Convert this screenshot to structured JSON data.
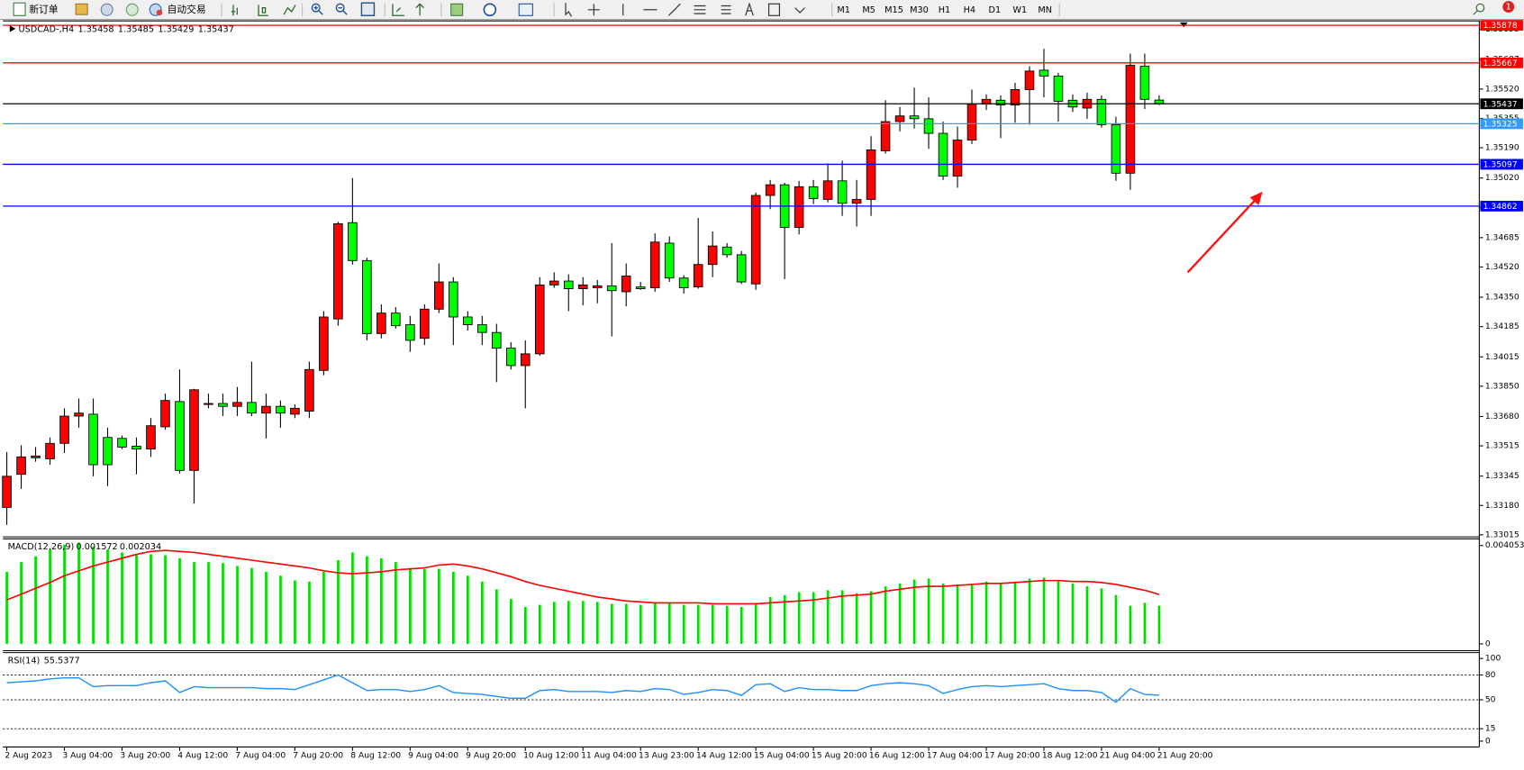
{
  "toolbar": {
    "new_order": "新订单",
    "auto_trading": "自动交易",
    "timeframes": [
      "M1",
      "M5",
      "M15",
      "M30",
      "H1",
      "H4",
      "D1",
      "W1",
      "MN"
    ],
    "notification_count": 1
  },
  "chart_data": [
    {
      "type": "candlestick",
      "symbol": "USDCAD-,H4",
      "up_color": "#ff0000",
      "down_color": "#00ff00",
      "ylim": [
        1.33009,
        1.359
      ],
      "yticks": [
        1.35855,
        1.35687,
        {
          "value": 1.3552,
          "label": "1.35520"
        },
        1.35355,
        {
          "value": 1.3519,
          "label": "1.35190"
        },
        {
          "value": 1.3502,
          "label": "1.35020"
        },
        1.34855,
        1.34685,
        {
          "value": 1.3452,
          "label": "1.34520"
        },
        {
          "value": 1.3435,
          "label": "1.34350"
        },
        1.34185,
        1.34015,
        {
          "value": 1.3385,
          "label": "1.33850"
        },
        {
          "value": 1.3368,
          "label": "1.33680"
        },
        1.33515,
        1.33345,
        {
          "value": 1.3318,
          "label": "1.33180"
        },
        1.33015
      ],
      "levels": [
        {
          "value": 1.35878,
          "color": "#ff0000"
        },
        {
          "value": 1.35667,
          "color": "#ff0000"
        },
        {
          "value": 1.35325,
          "color": "#3399ff"
        },
        {
          "value": 1.35097,
          "color": "#0000ff"
        },
        {
          "value": 1.34862,
          "color": "#0000ff"
        }
      ],
      "bid_color": "#000000",
      "x": [
        "2 Aug 2023",
        null,
        null,
        null,
        "3 Aug 04:00",
        null,
        null,
        null,
        "3 Aug 20:00",
        null,
        null,
        null,
        "4 Aug 12:00",
        null,
        null,
        null,
        "7 Aug 04:00",
        null,
        null,
        null,
        "7 Aug 20:00",
        null,
        null,
        null,
        "8 Aug 12:00",
        null,
        null,
        null,
        "9 Aug 04:00",
        null,
        null,
        null,
        "9 Aug 20:00",
        null,
        null,
        null,
        "10 Aug 12:00",
        null,
        null,
        null,
        "11 Aug 04:00",
        null,
        null,
        null,
        "13 Aug 23:00",
        null,
        null,
        null,
        "14 Aug 12:00",
        null,
        null,
        null,
        "15 Aug 04:00",
        null,
        null,
        null,
        "15 Aug 20:00",
        null,
        null,
        null,
        "16 Aug 12:00",
        null,
        null,
        null,
        "17 Aug 04:00",
        null,
        null,
        null,
        "17 Aug 20:00",
        null,
        null,
        null,
        "18 Aug 12:00",
        null,
        null,
        null,
        "21 Aug 04:00",
        null,
        null,
        null,
        "21 Aug 20:00"
      ],
      "open": [
        1.33169,
        1.33355,
        1.33448,
        1.33442,
        1.33529,
        1.33682,
        1.33693,
        1.33562,
        1.33557,
        1.33513,
        1.33497,
        1.33622,
        1.33764,
        1.33377,
        1.33748,
        1.33753,
        1.33737,
        1.33759,
        1.33699,
        1.33737,
        1.33693,
        1.3371,
        1.33939,
        1.34228,
        1.34769,
        1.34556,
        1.34146,
        1.34261,
        1.34196,
        1.34119,
        1.34283,
        1.34436,
        1.34239,
        1.34196,
        1.34152,
        1.34064,
        1.33966,
        1.34032,
        1.34419,
        1.34441,
        1.34398,
        1.34403,
        1.34414,
        1.34381,
        1.34408,
        1.34403,
        1.34654,
        1.34458,
        1.34408,
        1.34534,
        1.34632,
        1.34589,
        1.34425,
        1.34922,
        1.34982,
        1.34742,
        1.34971,
        1.349,
        1.35004,
        1.34878,
        1.349,
        1.35173,
        1.35337,
        1.35369,
        1.35353,
        1.35271,
        1.35031,
        1.35233,
        1.35435,
        1.35457,
        1.3543,
        1.35517,
        1.35626,
        1.35593,
        1.35457,
        1.35413,
        1.35462,
        1.3532,
        1.35047,
        1.35648,
        1.35458
      ],
      "high": [
        1.3348,
        1.33518,
        1.33508,
        1.33562,
        1.33726,
        1.33781,
        1.33781,
        1.33617,
        1.33573,
        1.33562,
        1.33671,
        1.33808,
        1.33944,
        1.33835,
        1.33808,
        1.33808,
        1.33846,
        1.33988,
        1.33808,
        1.3377,
        1.33748,
        1.33988,
        1.34272,
        1.34774,
        1.3502,
        1.34572,
        1.3431,
        1.34294,
        1.34245,
        1.3431,
        1.3454,
        1.34463,
        1.34272,
        1.34245,
        1.34201,
        1.34097,
        1.34108,
        1.34463,
        1.3449,
        1.34479,
        1.34463,
        1.34447,
        1.34654,
        1.3454,
        1.34436,
        1.34709,
        1.34692,
        1.34474,
        1.34796,
        1.3472,
        1.34654,
        1.3461,
        1.34938,
        1.35009,
        1.34993,
        1.35004,
        1.35009,
        1.35102,
        1.35118,
        1.35009,
        1.35255,
        1.35457,
        1.35419,
        1.35528,
        1.35473,
        1.35337,
        1.35309,
        1.35517,
        1.3549,
        1.35484,
        1.35555,
        1.35648,
        1.35746,
        1.3561,
        1.3549,
        1.355,
        1.35484,
        1.35364,
        1.35719,
        1.35719,
        1.35485
      ],
      "low": [
        1.33071,
        1.33273,
        1.33426,
        1.33409,
        1.33475,
        1.33617,
        1.33344,
        1.33289,
        1.33497,
        1.33355,
        1.33453,
        1.33606,
        1.3336,
        1.33191,
        1.33726,
        1.33682,
        1.33682,
        1.33682,
        1.33557,
        1.33617,
        1.33671,
        1.33671,
        1.33912,
        1.3419,
        1.34534,
        1.34108,
        1.34119,
        1.34174,
        1.34043,
        1.34081,
        1.34261,
        1.34081,
        1.34163,
        1.34081,
        1.33873,
        1.33944,
        1.33726,
        1.34021,
        1.34403,
        1.34272,
        1.34305,
        1.34316,
        1.3413,
        1.34299,
        1.34392,
        1.34381,
        1.34436,
        1.3437,
        1.34398,
        1.34463,
        1.34572,
        1.34425,
        1.34392,
        1.34845,
        1.34452,
        1.34703,
        1.34873,
        1.34883,
        1.34807,
        1.34747,
        1.34807,
        1.35157,
        1.35282,
        1.35298,
        1.35184,
        1.35009,
        1.34965,
        1.35211,
        1.35402,
        1.35244,
        1.35331,
        1.3532,
        1.35473,
        1.35337,
        1.35391,
        1.35353,
        1.35304,
        1.35004,
        1.34954,
        1.35408,
        1.35429
      ],
      "close": [
        1.33344,
        1.33453,
        1.33458,
        1.33529,
        1.33682,
        1.33699,
        1.33409,
        1.33409,
        1.33508,
        1.33497,
        1.33628,
        1.3377,
        1.33377,
        1.3383,
        1.33753,
        1.33737,
        1.33759,
        1.33699,
        1.33737,
        1.33699,
        1.33726,
        1.33944,
        1.34239,
        1.34763,
        1.34556,
        1.34146,
        1.34261,
        1.3419,
        1.34108,
        1.34283,
        1.34436,
        1.34239,
        1.34196,
        1.34152,
        1.34064,
        1.33966,
        1.34032,
        1.34419,
        1.34441,
        1.34398,
        1.34419,
        1.34414,
        1.34387,
        1.34469,
        1.34398,
        1.3466,
        1.34458,
        1.34403,
        1.34534,
        1.34638,
        1.34589,
        1.34436,
        1.34922,
        1.34982,
        1.34742,
        1.34971,
        1.34905,
        1.35004,
        1.34878,
        1.349,
        1.35178,
        1.35337,
        1.35369,
        1.35353,
        1.35271,
        1.35031,
        1.35233,
        1.35435,
        1.35462,
        1.3543,
        1.35517,
        1.35621,
        1.35593,
        1.35451,
        1.35419,
        1.35462,
        1.3532,
        1.35047,
        1.35653,
        1.35462,
        1.35437
      ]
    },
    {
      "type": "macd",
      "title": "MACD(12,26,9)",
      "ylim": [
        -0.00024,
        0.00437
      ],
      "yticks": [
        0.004053,
        0
      ],
      "series": [
        {
          "type": "bar",
          "color": "#00dd00",
          "values": [
            0.00297,
            0.00337,
            0.00361,
            0.00389,
            0.00409,
            0.00417,
            0.00401,
            0.00389,
            0.00377,
            0.00369,
            0.00369,
            0.00365,
            0.00353,
            0.00337,
            0.00337,
            0.00333,
            0.00321,
            0.00313,
            0.00297,
            0.00281,
            0.00261,
            0.00257,
            0.00297,
            0.00345,
            0.00377,
            0.00361,
            0.00353,
            0.00337,
            0.00313,
            0.00309,
            0.00309,
            0.00297,
            0.00281,
            0.00257,
            0.00225,
            0.00185,
            0.00152,
            0.00161,
            0.00173,
            0.00177,
            0.00177,
            0.00173,
            0.00165,
            0.00165,
            0.00161,
            0.00169,
            0.00169,
            0.00161,
            0.00161,
            0.00161,
            0.00157,
            0.00152,
            0.00169,
            0.00193,
            0.00201,
            0.00213,
            0.00213,
            0.00221,
            0.00221,
            0.00209,
            0.00217,
            0.00237,
            0.00249,
            0.00265,
            0.00269,
            0.00249,
            0.00245,
            0.00245,
            0.00257,
            0.00249,
            0.00257,
            0.00269,
            0.00273,
            0.00261,
            0.00249,
            0.00237,
            0.00229,
            0.00201,
            0.00157,
            0.00169,
            0.001572
          ]
        },
        {
          "type": "line",
          "color": "#ff0000",
          "values": [
            0.00181,
            0.00205,
            0.00229,
            0.00253,
            0.00281,
            0.00301,
            0.00321,
            0.00337,
            0.00353,
            0.00369,
            0.00381,
            0.00385,
            0.00381,
            0.00377,
            0.00369,
            0.00361,
            0.00353,
            0.00345,
            0.00337,
            0.00329,
            0.00321,
            0.00313,
            0.00301,
            0.00293,
            0.00289,
            0.00293,
            0.00297,
            0.00305,
            0.00309,
            0.00313,
            0.00325,
            0.00329,
            0.00321,
            0.00309,
            0.00293,
            0.00277,
            0.00257,
            0.00241,
            0.00229,
            0.00217,
            0.00205,
            0.00193,
            0.00185,
            0.00177,
            0.00173,
            0.00169,
            0.00169,
            0.00169,
            0.00169,
            0.00165,
            0.00165,
            0.00165,
            0.00165,
            0.00169,
            0.00173,
            0.00177,
            0.00181,
            0.00189,
            0.00197,
            0.00201,
            0.00205,
            0.00217,
            0.00225,
            0.00233,
            0.00237,
            0.00237,
            0.00241,
            0.00245,
            0.00249,
            0.00249,
            0.00253,
            0.00257,
            0.00261,
            0.00261,
            0.00257,
            0.00257,
            0.00253,
            0.00245,
            0.00233,
            0.00221,
            0.002034
          ]
        }
      ]
    },
    {
      "type": "line",
      "title": "RSI(14)",
      "color": "#1e90ff",
      "ylim": [
        -5.9,
        105.9
      ],
      "yticks": [
        100,
        80,
        50,
        15,
        0
      ],
      "levels": [
        80,
        50,
        15
      ],
      "values": [
        70.6,
        71.8,
        72.9,
        75.3,
        76.5,
        76.5,
        65.9,
        67.1,
        67.1,
        67.1,
        70.6,
        72.9,
        58.8,
        65.9,
        64.7,
        64.7,
        64.7,
        64.7,
        63.5,
        63.5,
        62.4,
        68.2,
        74.1,
        80,
        70.6,
        61.2,
        62.4,
        62.4,
        60,
        62.4,
        67.1,
        58.8,
        57.6,
        56.5,
        54.1,
        51.8,
        51.8,
        61.2,
        62.4,
        60,
        60,
        60,
        58.8,
        61.2,
        60,
        63.5,
        62.4,
        56.5,
        58.8,
        62.4,
        61.2,
        55.3,
        68.2,
        69.4,
        60,
        64.7,
        62.4,
        62.4,
        61.2,
        61.2,
        67.1,
        69.4,
        70.6,
        69.4,
        67.1,
        57.6,
        62.4,
        65.9,
        67.1,
        65.9,
        67.1,
        68.2,
        69.4,
        63.5,
        61.2,
        61.2,
        58.8,
        47.1,
        63.5,
        56.5,
        55.5377
      ]
    }
  ]
}
